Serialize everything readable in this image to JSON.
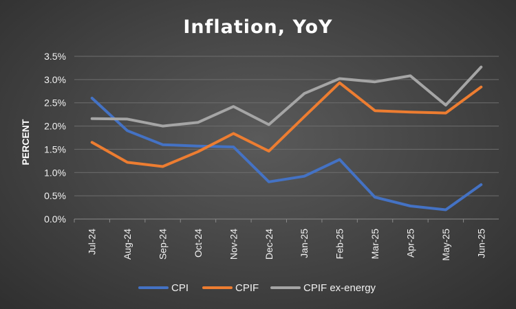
{
  "chart_data": {
    "type": "line",
    "title": "Inflation, YoY",
    "xlabel": "",
    "ylabel": "PERCENT",
    "ylim": [
      0,
      3.5
    ],
    "yticks": [
      "0.0%",
      "0.5%",
      "1.0%",
      "1.5%",
      "2.0%",
      "2.5%",
      "3.0%",
      "3.5%"
    ],
    "ytick_values": [
      0,
      0.5,
      1.0,
      1.5,
      2.0,
      2.5,
      3.0,
      3.5
    ],
    "categories": [
      "Jul-24",
      "Aug-24",
      "Sep-24",
      "Oct-24",
      "Nov-24",
      "Dec-24",
      "Jan-25",
      "Feb-25",
      "Mar-25",
      "Apr-25",
      "May-25",
      "Jun-25"
    ],
    "grid": true,
    "legend_position": "bottom",
    "series": [
      {
        "name": "CPI",
        "color": "#4472c4",
        "values": [
          2.6,
          1.9,
          1.6,
          1.57,
          1.55,
          0.8,
          0.92,
          1.28,
          0.47,
          0.28,
          0.2,
          0.74
        ]
      },
      {
        "name": "CPIF",
        "color": "#ed7d31",
        "values": [
          1.65,
          1.22,
          1.13,
          1.45,
          1.84,
          1.46,
          2.2,
          2.93,
          2.33,
          2.3,
          2.28,
          2.84
        ]
      },
      {
        "name": "CPIF ex-energy",
        "color": "#a5a5a5",
        "values": [
          2.16,
          2.15,
          2.0,
          2.08,
          2.42,
          2.03,
          2.7,
          3.02,
          2.95,
          3.08,
          2.45,
          3.27
        ]
      }
    ]
  }
}
